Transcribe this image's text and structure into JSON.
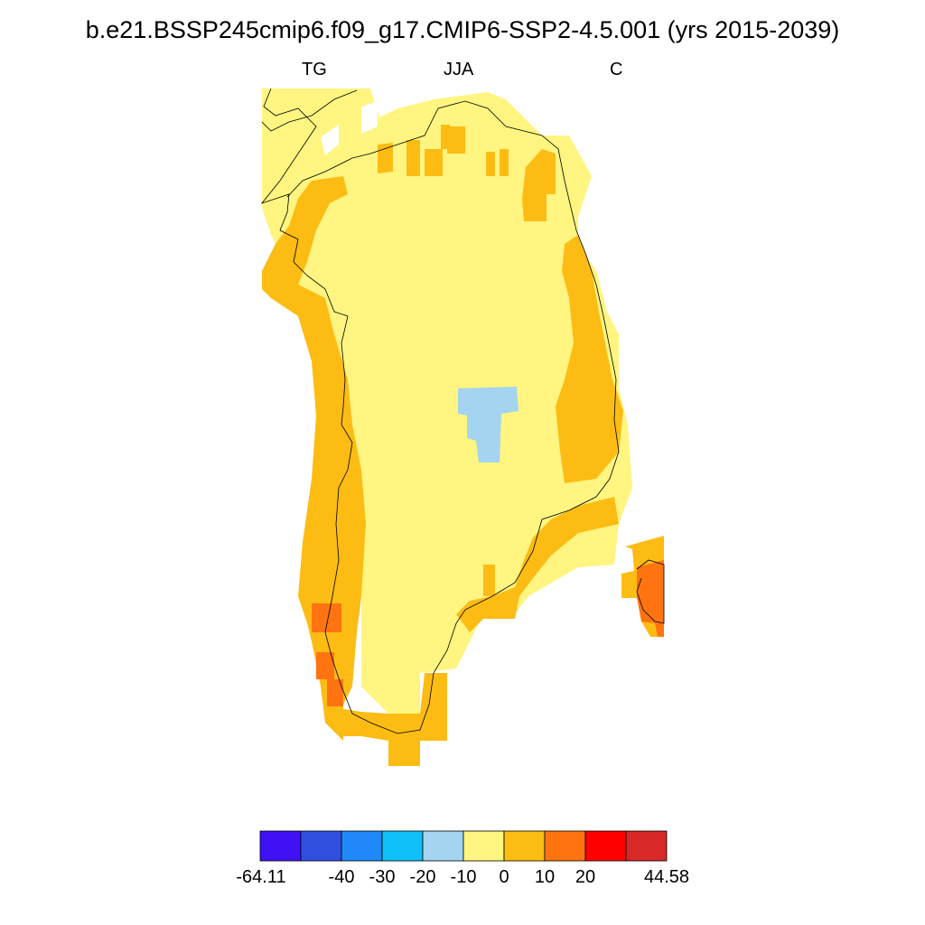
{
  "title": "b.e21.BSSP245cmip6.f09_g17.CMIP6-SSP2-4.5.001 (yrs 2015-2039)",
  "subtitle": {
    "left": "TG",
    "center": "JJA",
    "right": "C"
  },
  "colors": {
    "bin_colors": [
      "#4010f4",
      "#3050e0",
      "#2088f8",
      "#10c0f8",
      "#a4d4f0",
      "#fff580",
      "#fcbc14",
      "#ff7410",
      "#ff0000",
      "#d82828"
    ],
    "coast": "#000000"
  },
  "colorbar": {
    "min_label": "-64.11",
    "max_label": "44.58",
    "tick_labels": [
      "-40",
      "-30",
      "-20",
      "-10",
      "0",
      "10",
      "20"
    ]
  }
}
